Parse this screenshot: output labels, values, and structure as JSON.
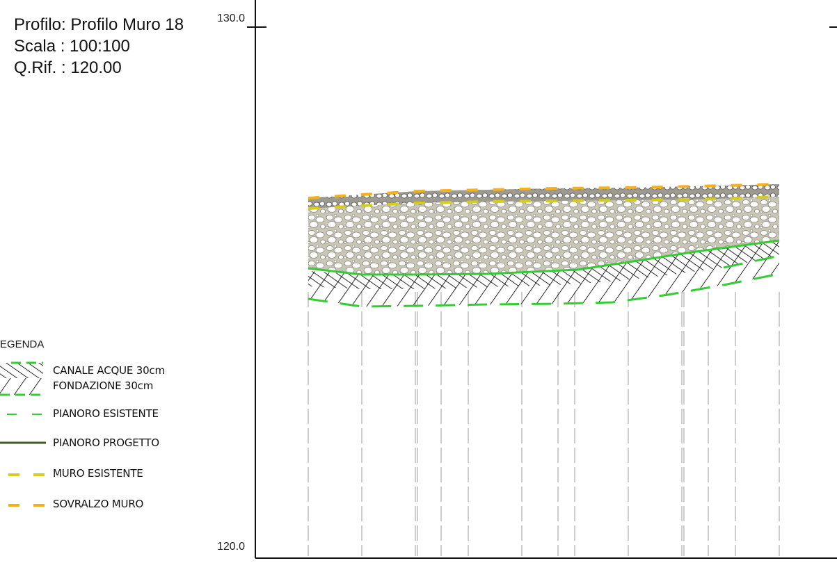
{
  "header": {
    "profile": "Profilo: Profilo Muro 18",
    "scale": "Scala : 100:100",
    "reference": "Q.Rif. : 120.00"
  },
  "axis": {
    "top_label": "130.0",
    "bottom_label": "120.0"
  },
  "legend": {
    "title": "EGENDA",
    "items": [
      {
        "label": "CANALE ACQUE 30cm",
        "symbol": "hatch-diagonal"
      },
      {
        "label": "FONDAZIONE 30cm",
        "symbol": "hatch-backslash"
      },
      {
        "label": "PIANORO ESISTENTE",
        "symbol": "dash-line",
        "color": "#33cc33"
      },
      {
        "label": "PIANORO PROGETTO",
        "symbol": "solid-line",
        "color": "#3d5c26"
      },
      {
        "label": "MURO ESISTENTE",
        "symbol": "dash-line",
        "color": "#d6cc1a"
      },
      {
        "label": "SOVRALZO MURO",
        "symbol": "dash-line",
        "color": "#f5b01a"
      }
    ]
  },
  "colors": {
    "fill": "#c9c6b8",
    "stone": "#ffffff",
    "green": "#33cc33",
    "yellow": "#d6cc1a",
    "orange": "#f5b01a",
    "guides": "#bdbdbd"
  }
}
